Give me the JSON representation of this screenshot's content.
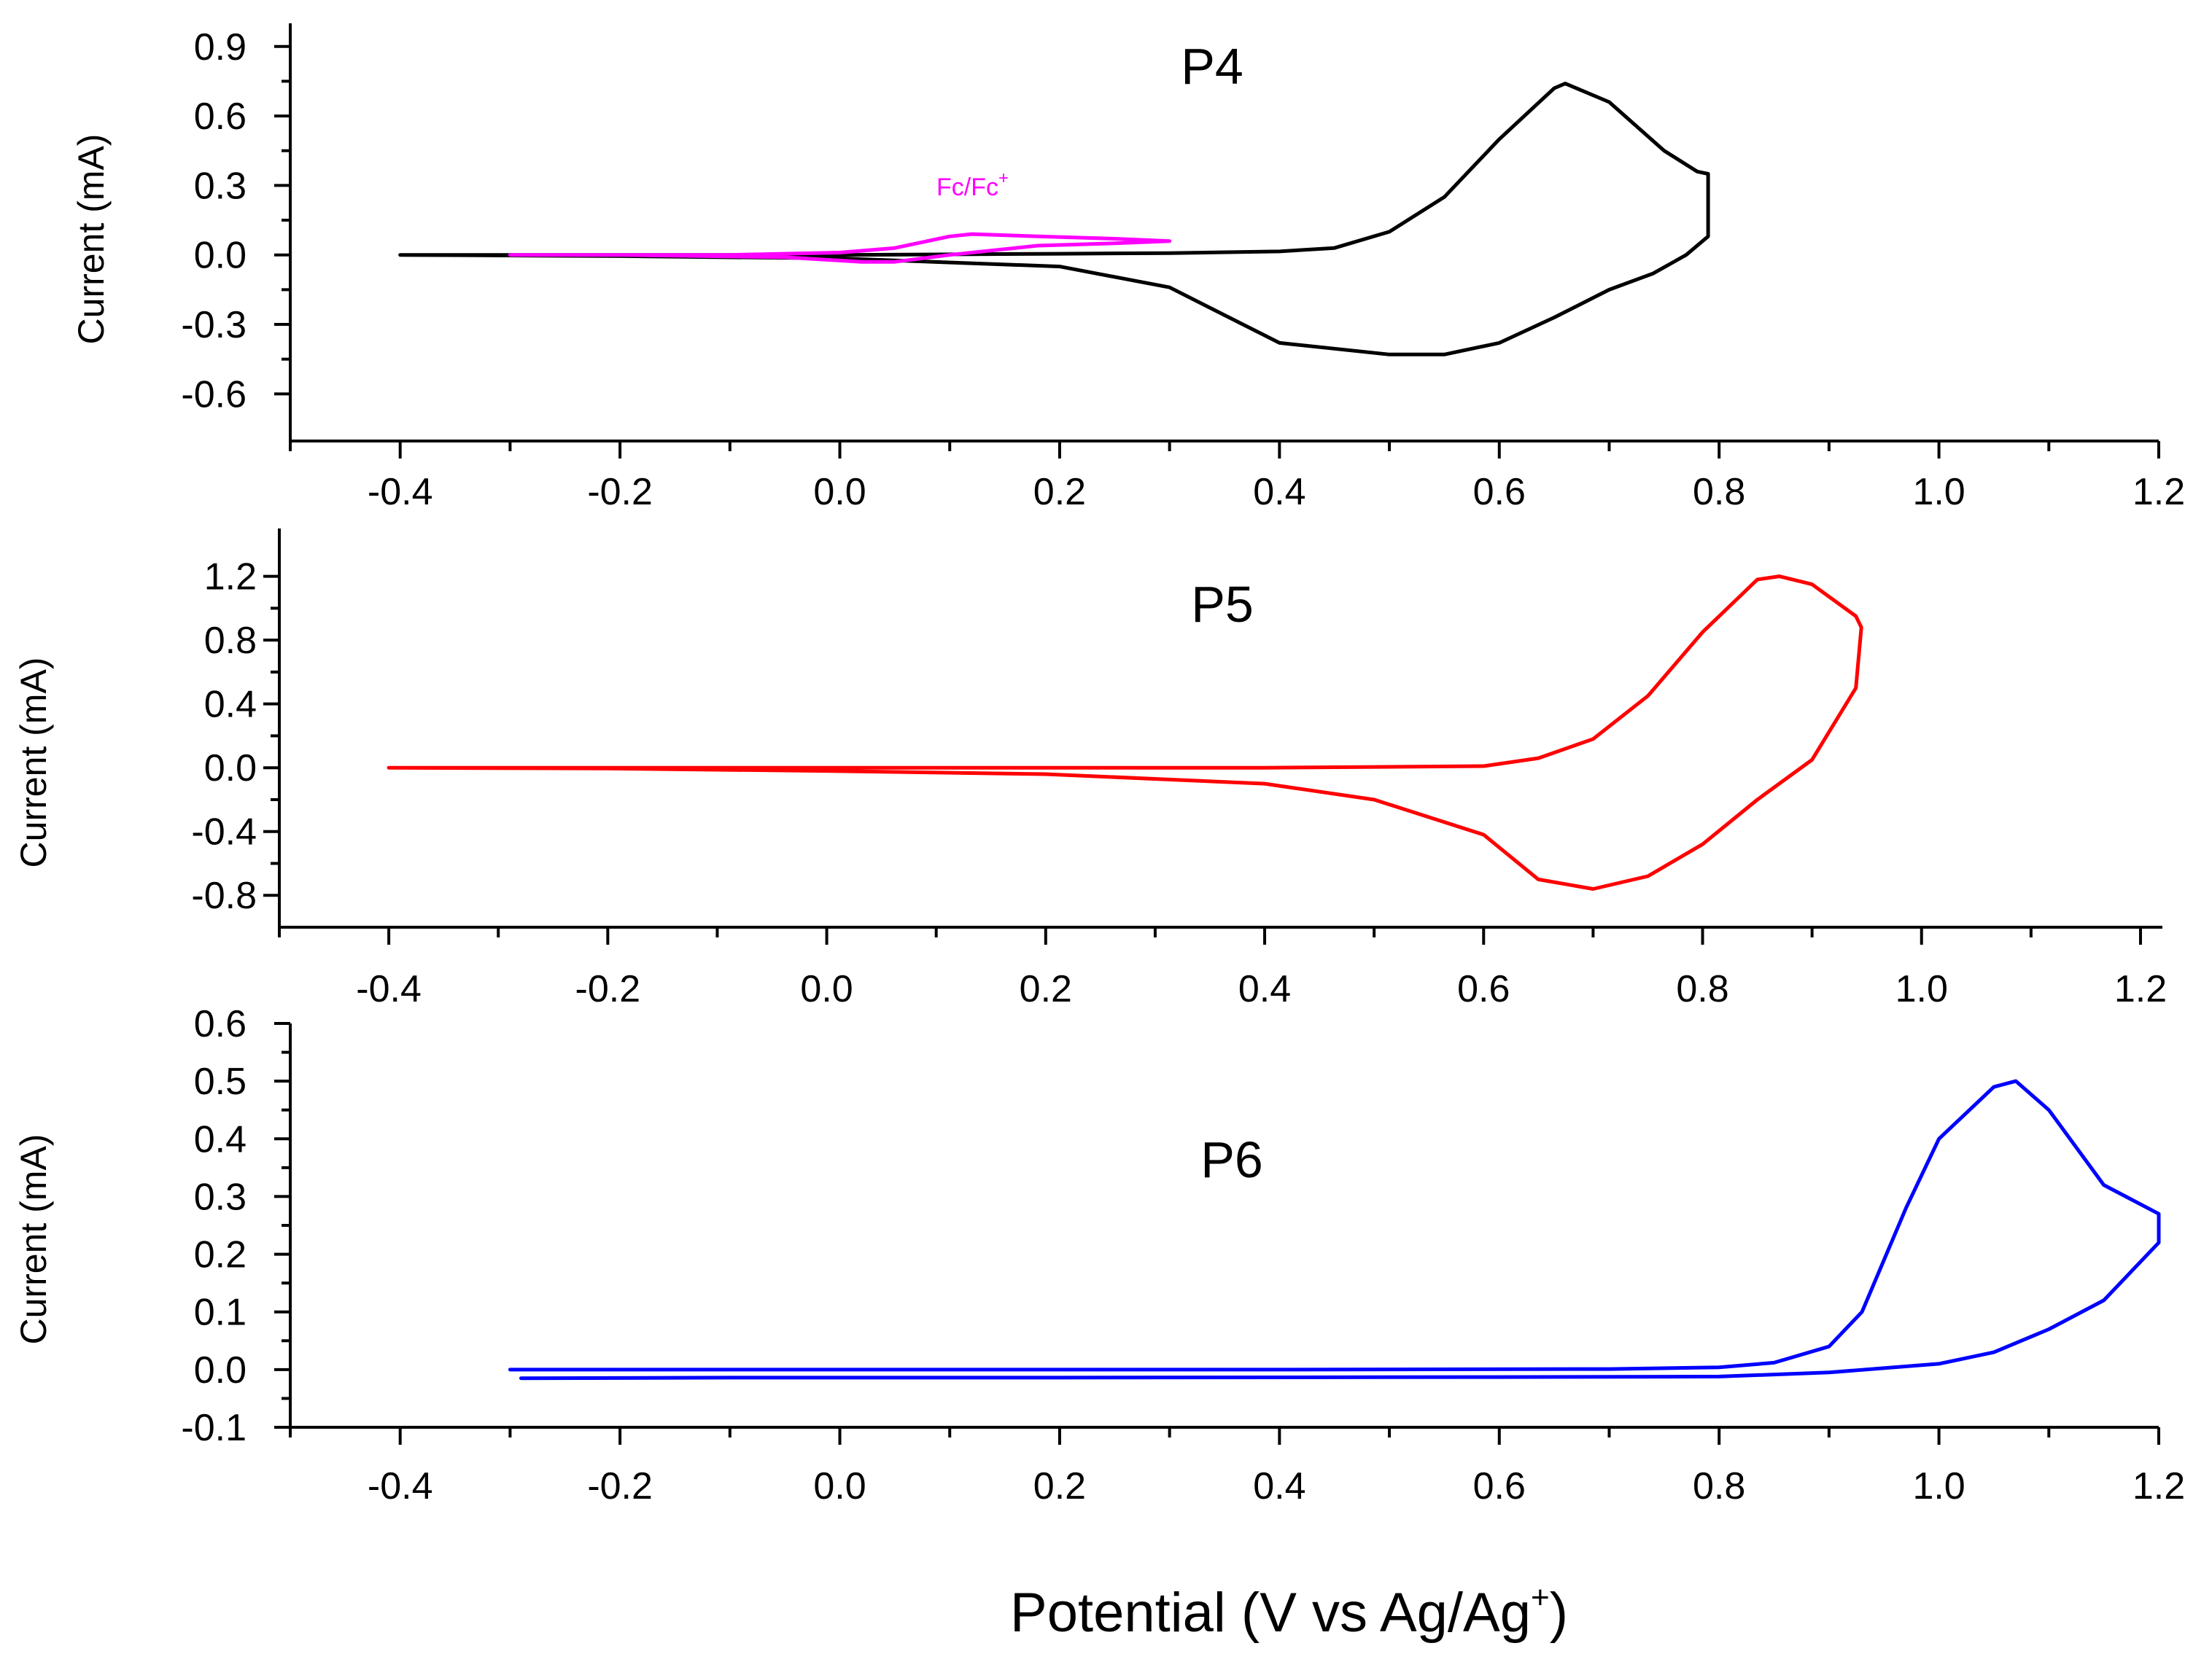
{
  "figure": {
    "xlabel": "Potential  (V vs Ag/Ag",
    "xlabel_sup": "+",
    "xlabel_close": ")"
  },
  "chart_data": [
    {
      "type": "line",
      "panel": "P4",
      "title": "P4",
      "title_color": "#000000",
      "ylabel": "Current  (mA)",
      "xlabel": "Potential (V vs Ag/Ag+)",
      "xlim": [
        -0.5,
        1.2
      ],
      "ylim": [
        -0.75,
        1.0
      ],
      "xticks": [
        -0.4,
        -0.2,
        0.0,
        0.2,
        0.4,
        0.6,
        0.8,
        1.0,
        1.2
      ],
      "xtick_labels": [
        "-0.4",
        "-0.2",
        "0.0",
        "0.2",
        "0.4",
        "0.6",
        "0.8",
        "1.0",
        "1.2"
      ],
      "yticks": [
        -0.6,
        -0.3,
        0.0,
        0.3,
        0.6,
        0.9
      ],
      "ytick_labels": [
        "-0.6",
        "-0.3",
        "0.0",
        "0.3",
        "0.6",
        "0.9"
      ],
      "annotation": {
        "text": "Fc/Fc",
        "sup": "+",
        "color": "#ff00ff",
        "x": 0.1,
        "y": 0.24
      },
      "series": [
        {
          "name": "P4",
          "color": "#000000",
          "points": [
            [
              -0.4,
              0.0
            ],
            [
              -0.2,
              0.0
            ],
            [
              0.0,
              0.0
            ],
            [
              0.2,
              0.005
            ],
            [
              0.3,
              0.008
            ],
            [
              0.4,
              0.015
            ],
            [
              0.45,
              0.03
            ],
            [
              0.5,
              0.1
            ],
            [
              0.55,
              0.25
            ],
            [
              0.6,
              0.5
            ],
            [
              0.65,
              0.72
            ],
            [
              0.66,
              0.74
            ],
            [
              0.7,
              0.66
            ],
            [
              0.75,
              0.45
            ],
            [
              0.78,
              0.36
            ],
            [
              0.79,
              0.35
            ],
            [
              0.79,
              0.08
            ],
            [
              0.77,
              0.0
            ],
            [
              0.74,
              -0.08
            ],
            [
              0.7,
              -0.15
            ],
            [
              0.65,
              -0.27
            ],
            [
              0.6,
              -0.38
            ],
            [
              0.55,
              -0.43
            ],
            [
              0.5,
              -0.43
            ],
            [
              0.4,
              -0.38
            ],
            [
              0.3,
              -0.14
            ],
            [
              0.2,
              -0.05
            ],
            [
              0.0,
              -0.015
            ],
            [
              -0.2,
              -0.005
            ],
            [
              -0.4,
              0.0
            ]
          ]
        },
        {
          "name": "Fc/Fc+",
          "color": "#ff00ff",
          "points": [
            [
              -0.3,
              0.0
            ],
            [
              -0.1,
              0.0
            ],
            [
              0.0,
              0.01
            ],
            [
              0.05,
              0.03
            ],
            [
              0.1,
              0.08
            ],
            [
              0.12,
              0.09
            ],
            [
              0.18,
              0.08
            ],
            [
              0.25,
              0.07
            ],
            [
              0.3,
              0.06
            ],
            [
              0.25,
              0.05
            ],
            [
              0.18,
              0.04
            ],
            [
              0.1,
              0.0
            ],
            [
              0.05,
              -0.03
            ],
            [
              0.02,
              -0.03
            ],
            [
              -0.05,
              -0.01
            ],
            [
              -0.2,
              0.0
            ],
            [
              -0.3,
              0.0
            ]
          ]
        }
      ]
    },
    {
      "type": "line",
      "panel": "P5",
      "title": "P5",
      "title_color": "#ff0000",
      "ylabel": "Current  (mA)",
      "xlabel": "Potential (V vs Ag/Ag+)",
      "xlim": [
        -0.5,
        1.22
      ],
      "ylim": [
        -1.0,
        1.5
      ],
      "xticks": [
        -0.4,
        -0.2,
        0.0,
        0.2,
        0.4,
        0.6,
        0.8,
        1.0,
        1.2
      ],
      "xtick_labels": [
        "-0.4",
        "-0.2",
        "0.0",
        "0.2",
        "0.4",
        "0.6",
        "0.8",
        "1.0",
        "1.2"
      ],
      "yticks": [
        -0.8,
        -0.4,
        0.0,
        0.4,
        0.8,
        1.2
      ],
      "ytick_labels": [
        "-0.8",
        "-0.4",
        "0.0",
        "0.4",
        "0.8",
        "1.2"
      ],
      "series": [
        {
          "name": "P5",
          "color": "#ff0000",
          "points": [
            [
              -0.4,
              0.0
            ],
            [
              -0.2,
              0.0
            ],
            [
              0.0,
              0.0
            ],
            [
              0.2,
              0.0
            ],
            [
              0.4,
              0.0
            ],
            [
              0.6,
              0.01
            ],
            [
              0.65,
              0.06
            ],
            [
              0.7,
              0.18
            ],
            [
              0.75,
              0.45
            ],
            [
              0.8,
              0.85
            ],
            [
              0.85,
              1.18
            ],
            [
              0.87,
              1.2
            ],
            [
              0.9,
              1.15
            ],
            [
              0.94,
              0.95
            ],
            [
              0.945,
              0.88
            ],
            [
              0.94,
              0.5
            ],
            [
              0.9,
              0.05
            ],
            [
              0.85,
              -0.2
            ],
            [
              0.8,
              -0.48
            ],
            [
              0.75,
              -0.68
            ],
            [
              0.7,
              -0.76
            ],
            [
              0.65,
              -0.7
            ],
            [
              0.6,
              -0.42
            ],
            [
              0.5,
              -0.2
            ],
            [
              0.4,
              -0.1
            ],
            [
              0.2,
              -0.04
            ],
            [
              0.0,
              -0.02
            ],
            [
              -0.2,
              -0.005
            ],
            [
              -0.4,
              0.0
            ]
          ]
        }
      ]
    },
    {
      "type": "line",
      "panel": "P6",
      "title": "P6",
      "title_color": "#0000ff",
      "ylabel": "Current  (mA)",
      "xlabel": "Potential (V vs Ag/Ag+)",
      "xlim": [
        -0.5,
        1.2
      ],
      "ylim": [
        -0.1,
        0.6
      ],
      "xticks": [
        -0.4,
        -0.2,
        0.0,
        0.2,
        0.4,
        0.6,
        0.8,
        1.0,
        1.2
      ],
      "xtick_labels": [
        "-0.4",
        "-0.2",
        "0.0",
        "0.2",
        "0.4",
        "0.6",
        "0.8",
        "1.0",
        "1.2"
      ],
      "yticks": [
        -0.1,
        0.0,
        0.1,
        0.2,
        0.3,
        0.4,
        0.5,
        0.6
      ],
      "ytick_labels": [
        "-0.1",
        "0.0",
        "0.1",
        "0.2",
        "0.3",
        "0.4",
        "0.5",
        "0.6"
      ],
      "series": [
        {
          "name": "P6",
          "color": "#0000ff",
          "points": [
            [
              -0.3,
              0.0
            ],
            [
              0.0,
              0.0
            ],
            [
              0.4,
              0.0
            ],
            [
              0.7,
              0.001
            ],
            [
              0.8,
              0.004
            ],
            [
              0.85,
              0.012
            ],
            [
              0.9,
              0.04
            ],
            [
              0.93,
              0.1
            ],
            [
              0.97,
              0.28
            ],
            [
              1.0,
              0.4
            ],
            [
              1.05,
              0.49
            ],
            [
              1.07,
              0.5
            ],
            [
              1.1,
              0.45
            ],
            [
              1.15,
              0.32
            ],
            [
              1.2,
              0.27
            ],
            [
              1.2,
              0.22
            ],
            [
              1.15,
              0.12
            ],
            [
              1.1,
              0.07
            ],
            [
              1.05,
              0.03
            ],
            [
              1.0,
              0.01
            ],
            [
              0.9,
              -0.005
            ],
            [
              0.8,
              -0.012
            ],
            [
              0.6,
              -0.013
            ],
            [
              0.2,
              -0.014
            ],
            [
              -0.1,
              -0.014
            ],
            [
              -0.29,
              -0.015
            ]
          ]
        }
      ]
    }
  ]
}
